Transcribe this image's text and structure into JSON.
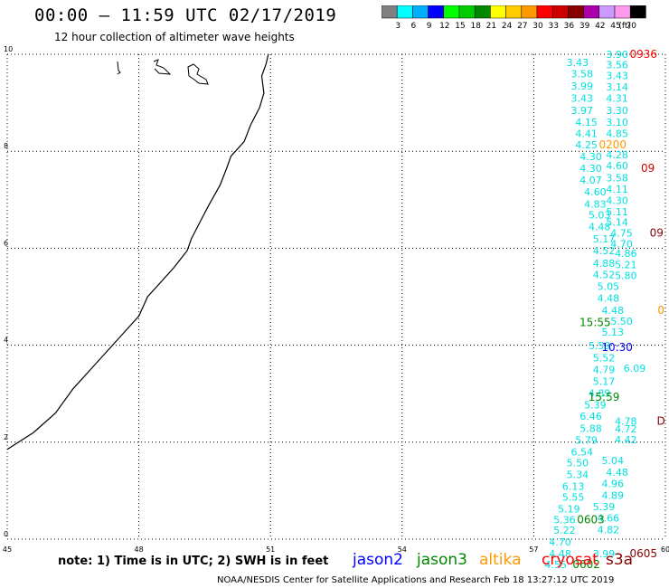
{
  "header": {
    "title": "00:00 – 11:59 UTC 02/17/2019",
    "subtitle": "12 hour collection of altimeter wave heights"
  },
  "colorbar": {
    "unit": "(ft)",
    "bins": [
      {
        "label": "",
        "color": "#808080"
      },
      {
        "label": "3",
        "color": "#00ffff"
      },
      {
        "label": "6",
        "color": "#00b0ff"
      },
      {
        "label": "9",
        "color": "#0000ff"
      },
      {
        "label": "12",
        "color": "#00ff00"
      },
      {
        "label": "15",
        "color": "#00cc00"
      },
      {
        "label": "18",
        "color": "#008800"
      },
      {
        "label": "21",
        "color": "#ffff00"
      },
      {
        "label": "24",
        "color": "#ffcc00"
      },
      {
        "label": "27",
        "color": "#ff9900"
      },
      {
        "label": "30",
        "color": "#ff0000"
      },
      {
        "label": "33",
        "color": "#cc0000"
      },
      {
        "label": "36",
        "color": "#880000"
      },
      {
        "label": "39",
        "color": "#aa00aa"
      },
      {
        "label": "42",
        "color": "#cc99ff"
      },
      {
        "label": "45",
        "color": "#ff99ee"
      },
      {
        "label": "70",
        "color": "#000000"
      }
    ]
  },
  "map": {
    "x_ticks": [
      "45",
      "48",
      "51",
      "54",
      "57",
      "60"
    ],
    "y_ticks": [
      "0",
      "2",
      "4",
      "6",
      "8",
      "10"
    ],
    "wave_labels_cyan": [
      {
        "t": "3.90",
        "lon": 58.9,
        "lat": 9.93
      },
      {
        "t": "3.43",
        "lon": 58.0,
        "lat": 9.76
      },
      {
        "t": "3.56",
        "lon": 58.9,
        "lat": 9.71
      },
      {
        "t": "3.58",
        "lon": 58.1,
        "lat": 9.52
      },
      {
        "t": "3.43",
        "lon": 58.9,
        "lat": 9.49
      },
      {
        "t": "3.99",
        "lon": 58.1,
        "lat": 9.27
      },
      {
        "t": "3.14",
        "lon": 58.9,
        "lat": 9.25
      },
      {
        "t": "3.43",
        "lon": 58.1,
        "lat": 9.02
      },
      {
        "t": "4.31",
        "lon": 58.9,
        "lat": 9.02
      },
      {
        "t": "3.97",
        "lon": 58.1,
        "lat": 8.77
      },
      {
        "t": "3.30",
        "lon": 58.9,
        "lat": 8.77
      },
      {
        "t": "4.15",
        "lon": 58.2,
        "lat": 8.53
      },
      {
        "t": "3.10",
        "lon": 58.9,
        "lat": 8.53
      },
      {
        "t": "4.41",
        "lon": 58.2,
        "lat": 8.29
      },
      {
        "t": "4.85",
        "lon": 58.9,
        "lat": 8.29
      },
      {
        "t": "4.25",
        "lon": 58.2,
        "lat": 8.06
      },
      {
        "t": "4.30",
        "lon": 58.3,
        "lat": 7.82
      },
      {
        "t": "4.28",
        "lon": 58.9,
        "lat": 7.85
      },
      {
        "t": "4.30",
        "lon": 58.3,
        "lat": 7.57
      },
      {
        "t": "4.60",
        "lon": 58.9,
        "lat": 7.63
      },
      {
        "t": "4.07",
        "lon": 58.3,
        "lat": 7.33
      },
      {
        "t": "3.58",
        "lon": 58.9,
        "lat": 7.38
      },
      {
        "t": "4.60",
        "lon": 58.4,
        "lat": 7.09
      },
      {
        "t": "4.11",
        "lon": 58.9,
        "lat": 7.15
      },
      {
        "t": "4.83",
        "lon": 58.4,
        "lat": 6.84
      },
      {
        "t": "4.30",
        "lon": 58.9,
        "lat": 6.91
      },
      {
        "t": "5.03",
        "lon": 58.5,
        "lat": 6.61
      },
      {
        "t": "5.11",
        "lon": 58.9,
        "lat": 6.68
      },
      {
        "t": "4.48",
        "lon": 58.5,
        "lat": 6.37
      },
      {
        "t": "5.14",
        "lon": 58.9,
        "lat": 6.46
      },
      {
        "t": "4.75",
        "lon": 59.0,
        "lat": 6.24
      },
      {
        "t": "5.17",
        "lon": 58.6,
        "lat": 6.12
      },
      {
        "t": "4.70",
        "lon": 59.0,
        "lat": 6.02
      },
      {
        "t": "4.52",
        "lon": 58.6,
        "lat": 5.88
      },
      {
        "t": "4.86",
        "lon": 59.1,
        "lat": 5.82
      },
      {
        "t": "4.88",
        "lon": 58.6,
        "lat": 5.62
      },
      {
        "t": "5.21",
        "lon": 59.1,
        "lat": 5.59
      },
      {
        "t": "4.52",
        "lon": 58.6,
        "lat": 5.38
      },
      {
        "t": "5.80",
        "lon": 59.1,
        "lat": 5.36
      },
      {
        "t": "5.05",
        "lon": 58.7,
        "lat": 5.14
      },
      {
        "t": "4.48",
        "lon": 58.7,
        "lat": 4.9
      },
      {
        "t": "4.48",
        "lon": 58.8,
        "lat": 4.65
      },
      {
        "t": "5.50",
        "lon": 59.0,
        "lat": 4.42
      },
      {
        "t": "5.13",
        "lon": 58.8,
        "lat": 4.2
      },
      {
        "t": "5.59",
        "lon": 58.5,
        "lat": 3.92
      },
      {
        "t": "5.52",
        "lon": 58.6,
        "lat": 3.67
      },
      {
        "t": "4.79",
        "lon": 58.6,
        "lat": 3.42
      },
      {
        "t": "6.09",
        "lon": 59.3,
        "lat": 3.45
      },
      {
        "t": "5.17",
        "lon": 58.6,
        "lat": 3.18
      },
      {
        "t": "4.89",
        "lon": 58.5,
        "lat": 2.94
      },
      {
        "t": "5.39",
        "lon": 58.4,
        "lat": 2.7
      },
      {
        "t": "6.46",
        "lon": 58.3,
        "lat": 2.46
      },
      {
        "t": "4.78",
        "lon": 59.1,
        "lat": 2.36
      },
      {
        "t": "5.88",
        "lon": 58.3,
        "lat": 2.21
      },
      {
        "t": "4.72",
        "lon": 59.1,
        "lat": 2.2
      },
      {
        "t": "5.79",
        "lon": 58.2,
        "lat": 1.97
      },
      {
        "t": "4.42",
        "lon": 59.1,
        "lat": 1.98
      },
      {
        "t": "6.54",
        "lon": 58.1,
        "lat": 1.73
      },
      {
        "t": "5.50",
        "lon": 58.0,
        "lat": 1.5
      },
      {
        "t": "5.04",
        "lon": 58.8,
        "lat": 1.55
      },
      {
        "t": "5.34",
        "lon": 58.0,
        "lat": 1.26
      },
      {
        "t": "4.48",
        "lon": 58.9,
        "lat": 1.31
      },
      {
        "t": "6.13",
        "lon": 57.9,
        "lat": 1.02
      },
      {
        "t": "4.96",
        "lon": 58.8,
        "lat": 1.07
      },
      {
        "t": "5.55",
        "lon": 57.9,
        "lat": 0.79
      },
      {
        "t": "4.89",
        "lon": 58.8,
        "lat": 0.83
      },
      {
        "t": "5.19",
        "lon": 57.8,
        "lat": 0.55
      },
      {
        "t": "5.39",
        "lon": 58.6,
        "lat": 0.6
      },
      {
        "t": "5.36",
        "lon": 57.7,
        "lat": 0.33
      },
      {
        "t": "4.66",
        "lon": 58.7,
        "lat": 0.36
      },
      {
        "t": "5.22",
        "lon": 57.7,
        "lat": 0.11
      },
      {
        "t": "4.82",
        "lon": 58.7,
        "lat": 0.12
      },
      {
        "t": "4.70",
        "lon": 57.6,
        "lat": -0.13
      },
      {
        "t": "4.48",
        "lon": 57.6,
        "lat": -0.37
      },
      {
        "t": "3.99",
        "lon": 58.6,
        "lat": -0.37
      },
      {
        "t": "4.55",
        "lon": 57.5,
        "lat": -0.6
      }
    ],
    "time_labels": [
      {
        "t": "0936",
        "color": "#ff0000",
        "lon": 59.5,
        "lat": 9.93
      },
      {
        "t": "0200",
        "color": "#ff9900",
        "lon": 58.8,
        "lat": 8.06
      },
      {
        "t": "09",
        "color": "#cc0000",
        "lon": 59.6,
        "lat": 7.57
      },
      {
        "t": "09",
        "color": "#880000",
        "lon": 59.8,
        "lat": 6.24
      },
      {
        "t": "10:30",
        "color": "#0000ff",
        "lon": 58.9,
        "lat": 3.88
      },
      {
        "t": "15:59",
        "color": "#008800",
        "lon": 58.6,
        "lat": 2.85
      },
      {
        "t": "15:55",
        "color": "#008800",
        "lon": 58.4,
        "lat": 4.39
      },
      {
        "t": "0603",
        "color": "#008800",
        "lon": 58.3,
        "lat": 0.33
      },
      {
        "t": "0602",
        "color": "#008800",
        "lon": 58.2,
        "lat": -0.6
      },
      {
        "t": "0605",
        "color": "#880000",
        "lon": 59.5,
        "lat": -0.37
      },
      {
        "t": "D",
        "color": "#880000",
        "lon": 59.9,
        "lat": 2.36
      },
      {
        "t": "0",
        "color": "#ff9900",
        "lon": 59.9,
        "lat": 4.65
      }
    ]
  },
  "footer": {
    "note": "note: 1) Time is in UTC; 2) SWH is in feet",
    "legend": [
      {
        "label": "jason2",
        "color": "#0000ff"
      },
      {
        "label": "jason3",
        "color": "#008800"
      },
      {
        "label": "altika",
        "color": "#ff9900"
      },
      {
        "label": "cryosat",
        "color": "#ff0000"
      },
      {
        "label": "s3a",
        "color": "#880000"
      }
    ],
    "credit": "NOAA/NESDIS Center for Satellite Applications and Research   Feb 18 13:27:12 UTC 2019"
  }
}
